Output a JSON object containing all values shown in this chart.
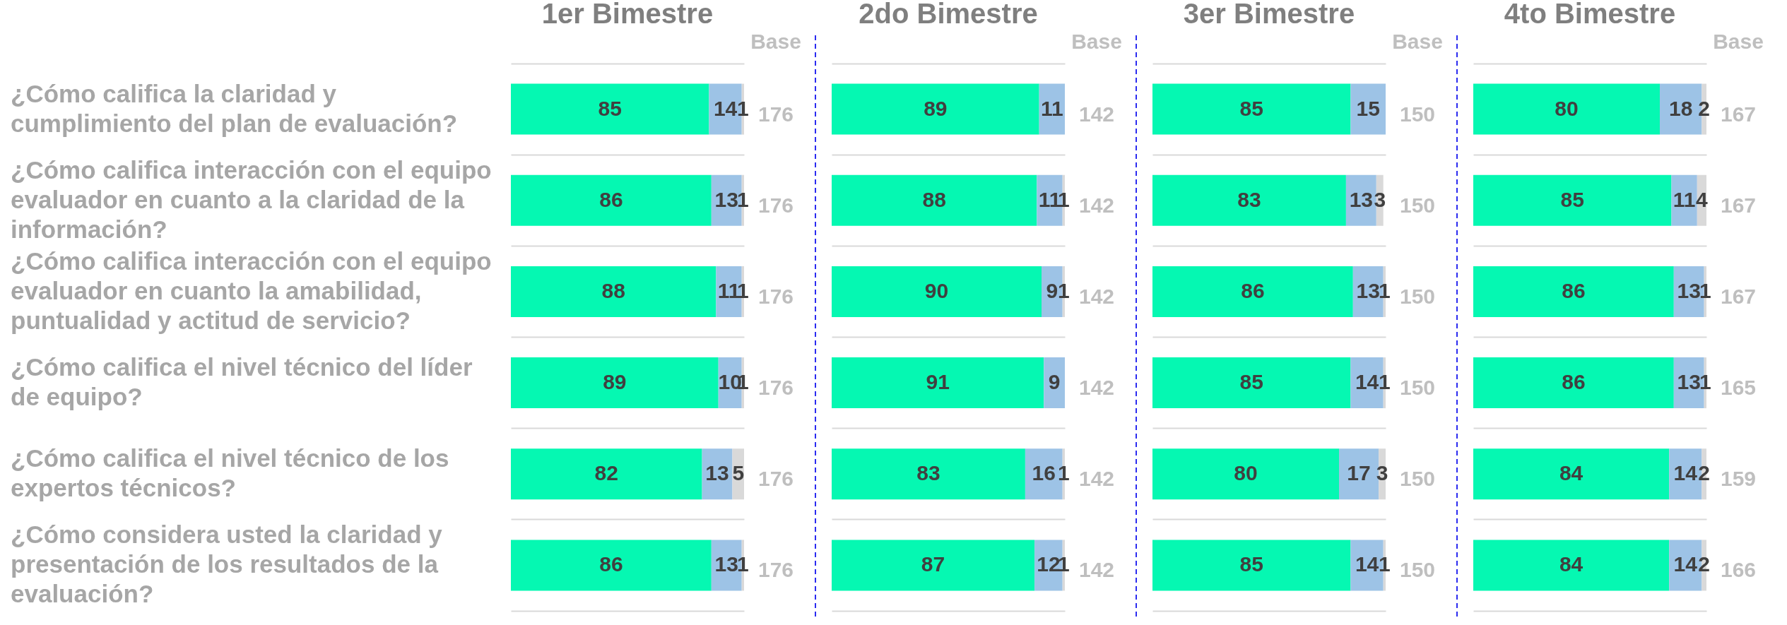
{
  "chart_data": [
    {
      "type": "bar",
      "orientation": "horizontal",
      "stacked": true,
      "title": "1er Bimestre",
      "data_labels": true,
      "grid": "y",
      "tick_labels": "y",
      "categories": [
        "¿Cómo califica la claridad y cumplimiento del plan de evaluación?",
        "¿Cómo califica interacción con el equipo evaluador en cuanto a la claridad de la información?",
        "¿Cómo califica interacción con el equipo evaluador en cuanto la amabilidad, puntualidad y actitud de servicio?",
        "¿Cómo califica el nivel técnico del líder de equipo?",
        "¿Cómo califica el nivel técnico de los expertos técnicos?",
        "¿Cómo considera usted la claridad y presentación de los resultados de la evaluación?"
      ],
      "series": [
        {
          "color": "#05f8b2",
          "values": [
            85,
            86,
            88,
            89,
            82,
            86
          ]
        },
        {
          "color": "#9dc3e6",
          "values": [
            14,
            13,
            11,
            10,
            13,
            13
          ]
        },
        {
          "color": "#d9d9d9",
          "values": [
            1,
            1,
            1,
            1,
            5,
            1
          ]
        }
      ],
      "annotations": [
        "Base",
        "176",
        "176",
        "176",
        "176",
        "176",
        "176"
      ]
    },
    {
      "type": "bar",
      "orientation": "horizontal",
      "stacked": true,
      "title": "2do Bimestre",
      "data_labels": true,
      "grid": "y",
      "tick_labels": false,
      "categories": [
        null,
        null,
        null,
        null,
        null,
        null
      ],
      "series": [
        {
          "color": "#05f8b2",
          "values": [
            89,
            88,
            90,
            91,
            83,
            87
          ]
        },
        {
          "color": "#9dc3e6",
          "values": [
            11,
            11,
            9,
            9,
            16,
            12
          ]
        },
        {
          "color": "#d9d9d9",
          "values": [
            null,
            1,
            1,
            null,
            1,
            1
          ]
        }
      ],
      "annotations": [
        "Base",
        "142",
        "142",
        "142",
        "142",
        "142",
        "142"
      ]
    },
    {
      "type": "bar",
      "orientation": "horizontal",
      "stacked": true,
      "title": "3er Bimestre",
      "data_labels": true,
      "grid": "y",
      "tick_labels": false,
      "categories": [
        null,
        null,
        null,
        null,
        null,
        null
      ],
      "series": [
        {
          "color": "#05f8b2",
          "values": [
            85,
            83,
            86,
            85,
            80,
            85
          ]
        },
        {
          "color": "#9dc3e6",
          "values": [
            15,
            13,
            13,
            14,
            17,
            14
          ]
        },
        {
          "color": "#d9d9d9",
          "values": [
            null,
            3,
            1,
            1,
            3,
            1
          ]
        }
      ],
      "annotations": [
        "Base",
        "150",
        "150",
        "150",
        "150",
        "150",
        "150"
      ]
    },
    {
      "type": "bar",
      "orientation": "horizontal",
      "stacked": true,
      "title": "4to Bimestre",
      "data_labels": true,
      "grid": "y",
      "tick_labels": false,
      "categories": [
        null,
        null,
        null,
        null,
        null,
        null
      ],
      "series": [
        {
          "color": "#05f8b2",
          "values": [
            80,
            85,
            86,
            86,
            84,
            84
          ]
        },
        {
          "color": "#9dc3e6",
          "values": [
            18,
            11,
            13,
            13,
            14,
            14
          ]
        },
        {
          "color": "#d9d9d9",
          "values": [
            2,
            4,
            1,
            1,
            2,
            2
          ]
        }
      ],
      "annotations": [
        "Base",
        "167",
        "167",
        "167",
        "165",
        "159",
        "166"
      ]
    }
  ]
}
